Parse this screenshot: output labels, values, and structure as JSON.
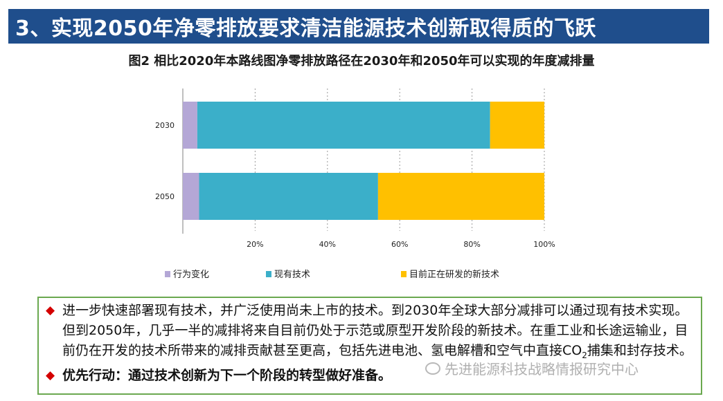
{
  "slide": {
    "header_title": "3、实现2050年净零排放要求清洁能源技术创新取得质的飞跃"
  },
  "chart_data": {
    "type": "bar",
    "orientation": "horizontal",
    "stacked": "percent",
    "title": "图2 相比2020年本路线图净零排放路径在2030年和2050年可以实现的年度减排量",
    "categories": [
      "2030",
      "2050"
    ],
    "series": [
      {
        "name": "行为变化",
        "color": "#b4a7d6",
        "values": [
          4,
          4.5
        ]
      },
      {
        "name": "现有技术",
        "color": "#3bafc9",
        "values": [
          81,
          49.5
        ]
      },
      {
        "name": "目前正在研发的新技术",
        "color": "#ffc000",
        "values": [
          15,
          46
        ]
      }
    ],
    "x_tick_labels": [
      "20%",
      "40%",
      "60%",
      "80%",
      "100%"
    ],
    "x_ticks": [
      20,
      40,
      60,
      80,
      100
    ],
    "xlim": [
      0,
      100
    ],
    "grid": "vertical dashed",
    "legend_position": "bottom"
  },
  "notes": {
    "bullet1": "进一步快速部署现有技术，并广泛使用尚未上市的技术。到2030年全球大部分减排可以通过现有技术实现。但到2050年，几乎一半的减排将来自目前仍处于示范或原型开发阶段的新技术。在重工业和长途运输业，目前仍在开发的技术所带来的减排贡献甚至更高，包括先进电池、氢电解槽和空气中直接CO",
    "bullet1_sub": "2",
    "bullet1_tail": "捕集和封存技术。",
    "bullet2": "优先行动：通过技术创新为下一个阶段的转型做好准备。"
  },
  "watermark": {
    "text": "先进能源科技战略情报研究中心"
  },
  "colors": {
    "header_bg": "#1f4e8c",
    "bullet_red": "#d40000",
    "box_border": "#6aa84f"
  }
}
